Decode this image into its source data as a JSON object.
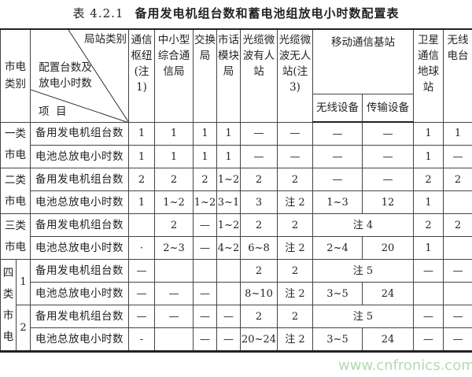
{
  "title": {
    "number": "表 4.2.1",
    "text": "备用发电机组台数和蓄电池组放电小时数配置表"
  },
  "header": {
    "category": "市电类别",
    "diag_top": "局站类别",
    "diag_mid": "配置台数及放电小时数",
    "diag_bottom": "项  目",
    "columns": [
      "通信枢纽(注1)",
      "中小型综合通信局",
      "交换局",
      "市话模块局",
      "光缆微波有人站",
      "光缆微波无人站(注3)",
      "移动通信基站",
      "卫星通信地球站",
      "无线电台"
    ],
    "mobile_sub": [
      "无线设备",
      "传输设备"
    ]
  },
  "items": {
    "gen": "备用发电机组台数",
    "bat": "电池总放电小时数"
  },
  "groups": [
    {
      "label": "一类市电",
      "rows": [
        [
          "1",
          "1",
          "1",
          "1",
          "—",
          "—",
          "—",
          "—",
          "1",
          "1"
        ],
        [
          "1",
          "1",
          "1",
          "1",
          "—",
          "—",
          "—",
          "—",
          "1",
          "—"
        ]
      ]
    },
    {
      "label": "二类市电",
      "rows": [
        [
          "2",
          "2",
          "2",
          "1~2",
          "2",
          "2",
          "—",
          "—",
          "2",
          "2"
        ],
        [
          "1",
          "1~2",
          "1~2",
          "3~1",
          "3",
          "注 2",
          "1~3",
          "12",
          "1",
          ""
        ]
      ]
    },
    {
      "label": "三类市电",
      "rows": [
        [
          "",
          "2",
          "—",
          "1~2",
          "2",
          "2",
          "注 4",
          "",
          "2",
          "2"
        ],
        [
          "·",
          "2~3",
          "—",
          "4~2",
          "6~8",
          "注 2",
          "2~4",
          "20",
          "1",
          ""
        ]
      ]
    },
    {
      "label": "四类市电",
      "subs": [
        {
          "label": "1",
          "rows": [
            [
              "—",
              "",
              "",
              "",
              "2",
              "2",
              "注 5",
              "",
              "—",
              "—"
            ],
            [
              "—",
              "—",
              "—",
              "",
              "8~10",
              "注 2",
              "3~5",
              "24",
              "",
              ""
            ]
          ]
        },
        {
          "label": "2",
          "rows": [
            [
              "—",
              "—",
              "—",
              "—",
              "2",
              "2",
              "注 5",
              "",
              "—",
              "—"
            ],
            [
              "-",
              "",
              "—",
              "—",
              "20~24",
              "注 2",
              "3~5",
              "24",
              "—",
              "—"
            ]
          ]
        }
      ]
    }
  ],
  "watermark": "www.cnfronics.com"
}
